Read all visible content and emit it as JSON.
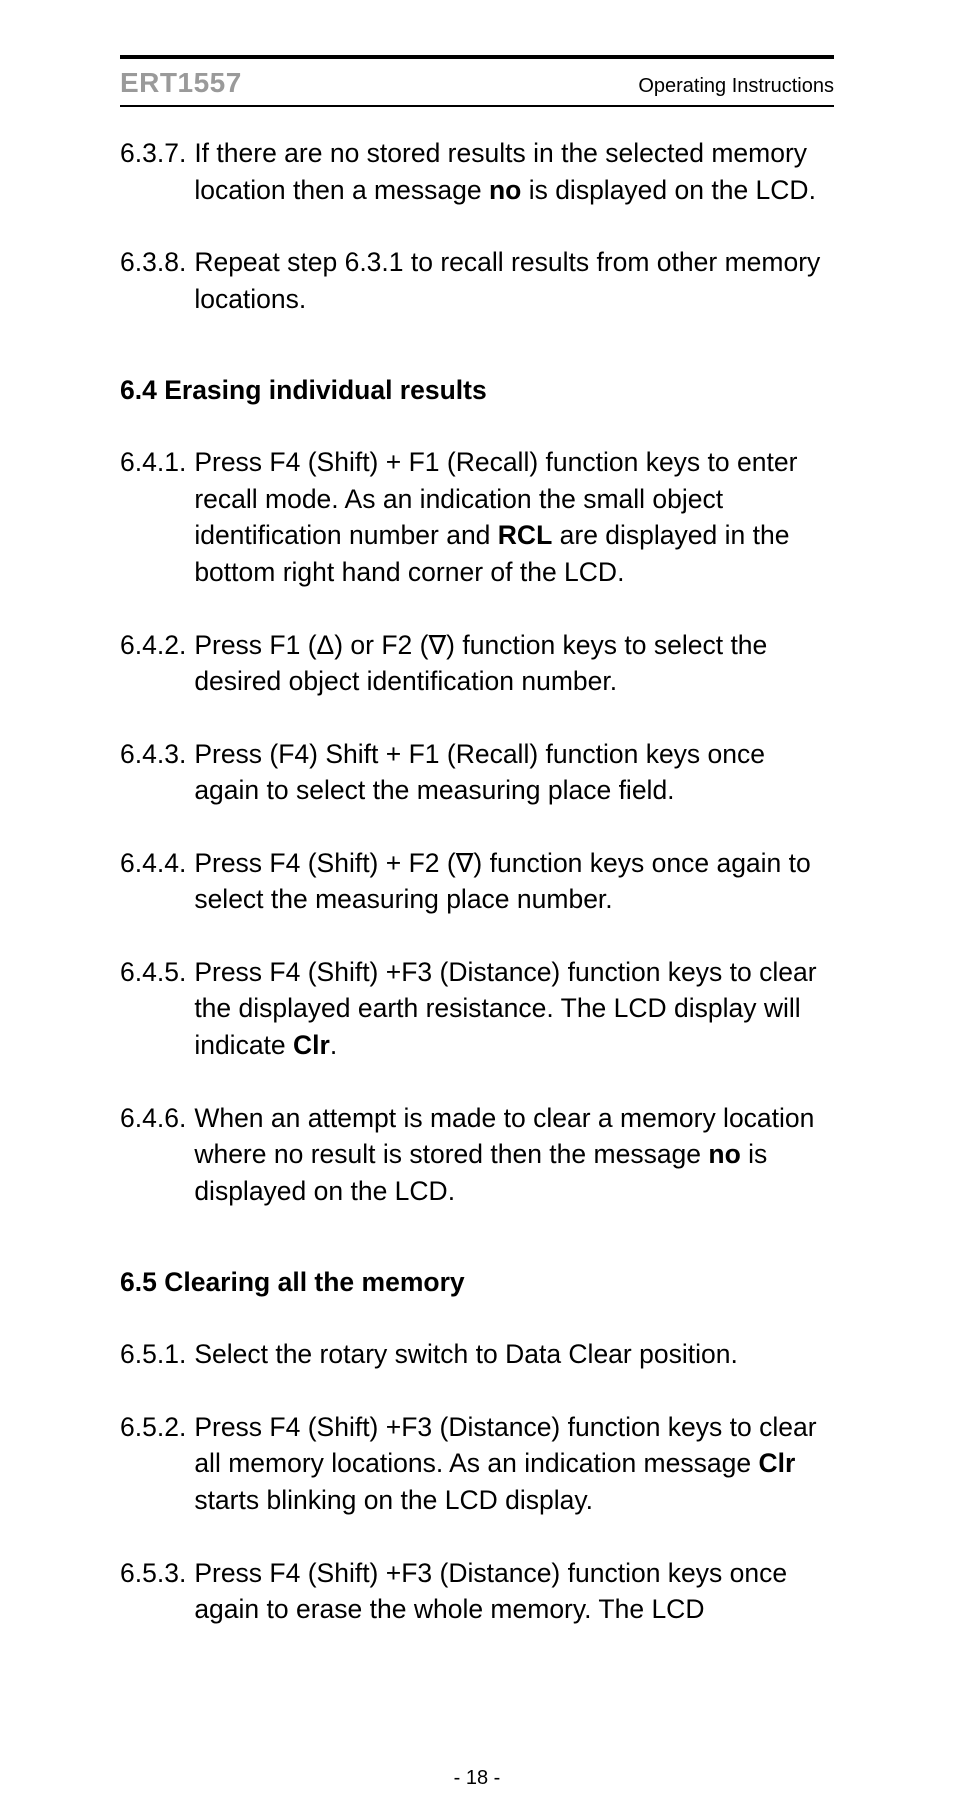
{
  "header": {
    "left": "ERT1557",
    "right": "Operating Instructions"
  },
  "items637": {
    "num": "6.3.7.",
    "pre": "If there are no stored results in the selected memory location then a message ",
    "bold": "no",
    "post": " is displayed on the LCD."
  },
  "items638": {
    "num": "6.3.8.",
    "text": "Repeat step 6.3.1 to recall results from other memory locations."
  },
  "section64": "6.4 Erasing individual results",
  "items641": {
    "num": "6.4.1.",
    "pre": "Press F4 (Shift) + F1 (Recall) function keys to enter recall mode. As an indication the small object identification number and ",
    "bold": "RCL",
    "post": " are displayed in the bottom right hand corner of the LCD."
  },
  "items642": {
    "num": "6.4.2.",
    "text": "Press F1 (Δ) or F2 (∇) function keys to select the desired object identification number."
  },
  "items643": {
    "num": "6.4.3.",
    "text": "Press (F4) Shift + F1 (Recall) function keys once again to select the measuring place field."
  },
  "items644": {
    "num": "6.4.4.",
    "text": "Press F4 (Shift) + F2 (∇) function keys once again to select the measuring place number."
  },
  "items645": {
    "num": "6.4.5.",
    "pre": "Press F4 (Shift) +F3 (Distance) function keys to clear the displayed earth resistance. The LCD display will indicate ",
    "bold": "Clr",
    "post": "."
  },
  "items646": {
    "num": "6.4.6.",
    "pre": "When an attempt is made to clear a memory location where no result is stored then the message ",
    "bold": "no",
    "post": " is displayed on the LCD."
  },
  "section65": "6.5 Clearing all the memory",
  "items651": {
    "num": "6.5.1.",
    "text": "Select the rotary switch to Data Clear position."
  },
  "items652": {
    "num": "6.5.2.",
    "pre": "Press F4 (Shift) +F3 (Distance) function keys to clear all memory locations. As an indication message ",
    "bold": "Clr",
    "post": " starts blinking on the LCD display."
  },
  "items653": {
    "num": "6.5.3.",
    "text": "Press F4 (Shift) +F3 (Distance) function keys once again to erase the whole memory. The LCD"
  },
  "footer": "- 18 -"
}
